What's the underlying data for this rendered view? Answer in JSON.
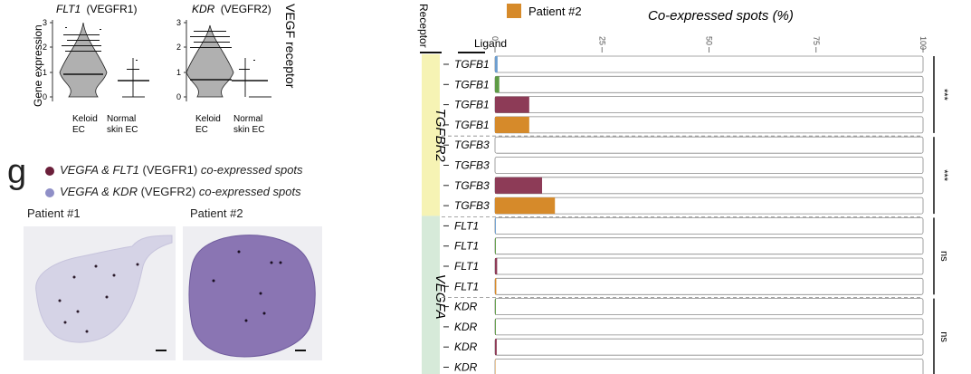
{
  "violin": {
    "panels": [
      {
        "gene": "FLT1",
        "receptor": "(VEGFR1)",
        "groups": [
          "Keloid\nEC",
          "Normal\nskin EC"
        ]
      },
      {
        "gene": "KDR",
        "receptor": "(VEGFR2)",
        "groups": [
          "Keloid\nEC",
          "Normal\nskin EC"
        ]
      }
    ],
    "ylabel": "Gene expression",
    "yticks": [
      "0",
      "1",
      "2",
      "3"
    ],
    "side_label": "VEGF receptor"
  },
  "legend_g": {
    "letter": "g",
    "items": [
      {
        "genes": "VEGFA & FLT1",
        "receptor": "(VEGFR1)",
        "suffix": "co-expressed spots",
        "color": "#6b1f3a"
      },
      {
        "genes": "VEGFA & KDR",
        "receptor": "(VEGFR2)",
        "suffix": "co-expressed spots",
        "color": "#8f8fc7"
      }
    ]
  },
  "tissue": {
    "patients": [
      "Patient #1",
      "Patient #2"
    ]
  },
  "chart_data": {
    "type": "bar",
    "title": "Co-expressed spots (%)",
    "legend": [
      {
        "name": "Patient #2",
        "color": "#d68a2a"
      }
    ],
    "receptor_header": "Receptor",
    "ligand_header": "Ligand",
    "xlim": [
      0,
      100
    ],
    "xticks": [
      "0",
      "25",
      "50",
      "75",
      "100"
    ],
    "receptor_groups": [
      {
        "name": "TGFBR2",
        "color": "#f6f3b4",
        "rows": [
          0,
          7
        ]
      },
      {
        "name": "VEGFA",
        "color": "#d6ead9",
        "rows": [
          8,
          15
        ]
      }
    ],
    "rows": [
      {
        "ligand": "TGFB1",
        "value": 0.6,
        "color": "#6d9ecf"
      },
      {
        "ligand": "TGFB1",
        "value": 1.0,
        "color": "#5e9b45"
      },
      {
        "ligand": "TGFB1",
        "value": 8.0,
        "color": "#8d3b57"
      },
      {
        "ligand": "TGFB1",
        "value": 8.0,
        "color": "#d68a2a"
      },
      {
        "ligand": "TGFB3",
        "value": 0,
        "color": "#6d9ecf"
      },
      {
        "ligand": "TGFB3",
        "value": 0,
        "color": "#5e9b45"
      },
      {
        "ligand": "TGFB3",
        "value": 11.0,
        "color": "#8d3b57"
      },
      {
        "ligand": "TGFB3",
        "value": 14.0,
        "color": "#d68a2a"
      },
      {
        "ligand": "FLT1",
        "value": 0.2,
        "color": "#6d9ecf"
      },
      {
        "ligand": "FLT1",
        "value": 0.2,
        "color": "#5e9b45"
      },
      {
        "ligand": "FLT1",
        "value": 0.5,
        "color": "#8d3b57"
      },
      {
        "ligand": "FLT1",
        "value": 0.3,
        "color": "#d68a2a"
      },
      {
        "ligand": "KDR",
        "value": 0.2,
        "color": "#5e9b45"
      },
      {
        "ligand": "KDR",
        "value": 0.2,
        "color": "#5e9b45"
      },
      {
        "ligand": "KDR",
        "value": 0.4,
        "color": "#8d3b57"
      },
      {
        "ligand": "KDR",
        "value": 0.1,
        "color": "#d68a2a"
      }
    ],
    "significance": [
      {
        "label": "***",
        "rows": [
          0,
          3
        ]
      },
      {
        "label": "***",
        "rows": [
          4,
          7
        ]
      },
      {
        "label": "ns",
        "rows": [
          8,
          11
        ]
      },
      {
        "label": "ns",
        "rows": [
          12,
          15
        ]
      }
    ]
  }
}
